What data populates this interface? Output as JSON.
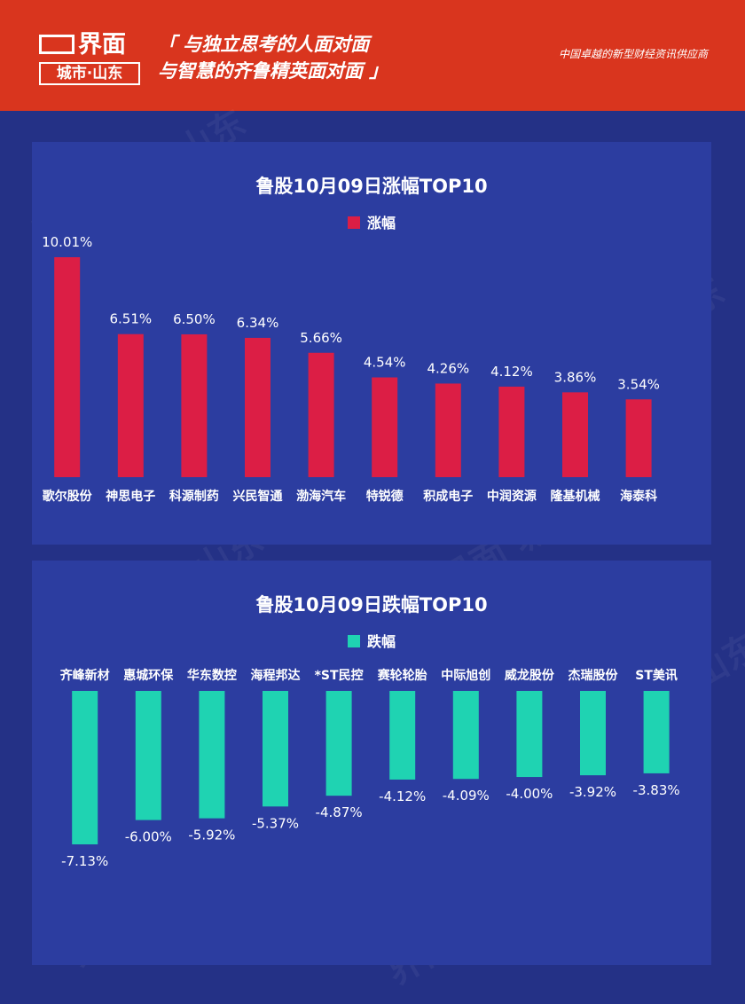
{
  "header": {
    "logo_main": "界面",
    "logo_sub": "城市·山东",
    "slogan_line1": "「 与独立思考的人面对面",
    "slogan_line2": "与智慧的齐鲁精英面对面 」",
    "tagline": "中国卓越的新型财经资讯供应商"
  },
  "watermark": "界面 城市·山东",
  "colors": {
    "header_bg": "#d9351e",
    "page_bg": "#243186",
    "panel_bg": "#2c3da0",
    "gain": "#dc1e45",
    "loss": "#1fd3b2"
  },
  "chart_data": [
    {
      "type": "bar",
      "title": "鲁股10月09日涨幅TOP10",
      "legend": "涨幅",
      "categories": [
        "歌尔股份",
        "神思电子",
        "科源制药",
        "兴民智通",
        "渤海汽车",
        "特锐德",
        "积成电子",
        "中润资源",
        "隆基机械",
        "海泰科"
      ],
      "values": [
        10.01,
        6.51,
        6.5,
        6.34,
        5.66,
        4.54,
        4.26,
        4.12,
        3.86,
        3.54
      ],
      "labels": [
        "10.01%",
        "6.51%",
        "6.50%",
        "6.34%",
        "5.66%",
        "4.54%",
        "4.26%",
        "4.12%",
        "3.86%",
        "3.54%"
      ],
      "ylim": [
        0,
        10.01
      ]
    },
    {
      "type": "bar",
      "title": "鲁股10月09日跌幅TOP10",
      "legend": "跌幅",
      "categories": [
        "齐峰新材",
        "惠城环保",
        "华东数控",
        "海程邦达",
        "*ST民控",
        "赛轮轮胎",
        "中际旭创",
        "威龙股份",
        "杰瑞股份",
        "ST美讯"
      ],
      "values": [
        -7.13,
        -6.0,
        -5.92,
        -5.37,
        -4.87,
        -4.12,
        -4.09,
        -4.0,
        -3.92,
        -3.83
      ],
      "labels": [
        "-7.13%",
        "-6.00%",
        "-5.92%",
        "-5.37%",
        "-4.87%",
        "-4.12%",
        "-4.09%",
        "-4.00%",
        "-3.92%",
        "-3.83%"
      ],
      "ylim": [
        -7.13,
        0
      ]
    }
  ]
}
